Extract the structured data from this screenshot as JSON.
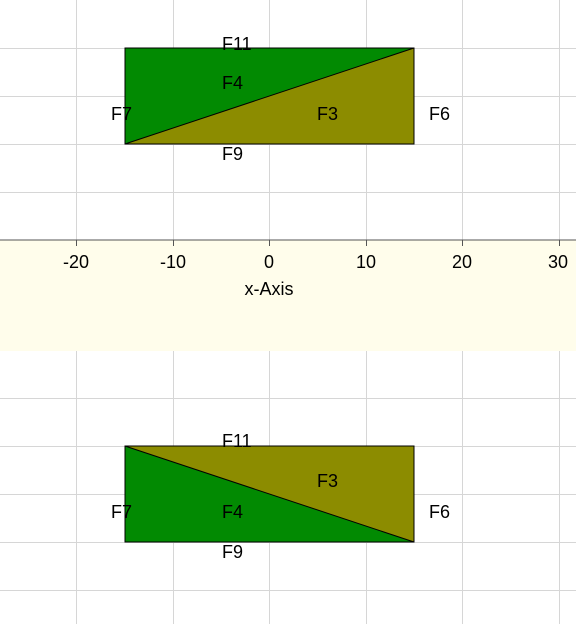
{
  "colors": {
    "face_green": "#028A02",
    "face_olive": "#8C8C00",
    "grid": "#d6d6d6",
    "axis_band": "#FFFDEB",
    "edge": "#000000"
  },
  "axis": {
    "label": "x-Axis",
    "ticks": [
      "-20",
      "-10",
      "0",
      "10",
      "20",
      "30"
    ]
  },
  "panels": [
    {
      "labels": {
        "top": "F11",
        "upper_face": "F4",
        "lower_face": "F3",
        "left": "F7",
        "right": "F6",
        "bottom": "F9"
      }
    },
    {
      "labels": {
        "top": "F11",
        "upper_face": "F3",
        "lower_face": "F4",
        "left": "F7",
        "right": "F6",
        "bottom": "F9"
      }
    }
  ]
}
